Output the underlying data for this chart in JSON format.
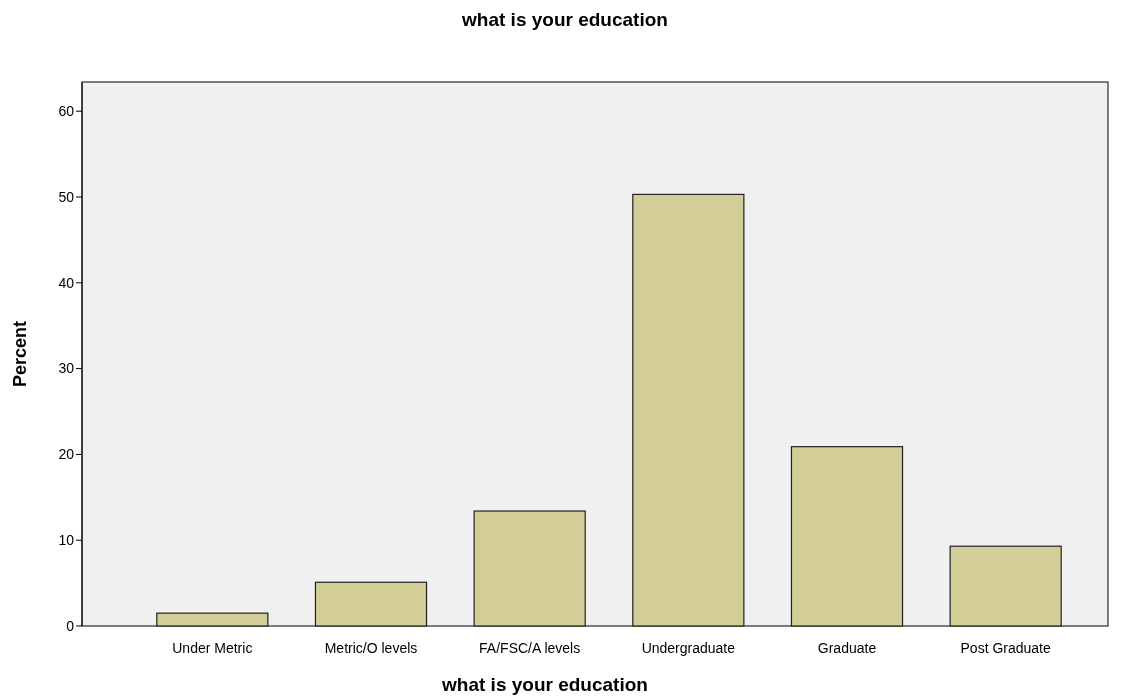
{
  "chart_data": {
    "type": "bar",
    "title": "what is your education",
    "xlabel": "what is your education",
    "ylabel": "Percent",
    "categories": [
      "Under Metric",
      "Metric/O levels",
      "FA/FSC/A levels",
      "Undergraduate",
      "Graduate",
      "Post Graduate"
    ],
    "values": [
      1.5,
      5.1,
      13.4,
      50.3,
      20.9,
      9.3
    ],
    "color": "#d3ce97",
    "ylim": [
      0,
      63.4
    ],
    "yticks": [
      0,
      10,
      20,
      30,
      40,
      50,
      60
    ],
    "grid": false
  }
}
